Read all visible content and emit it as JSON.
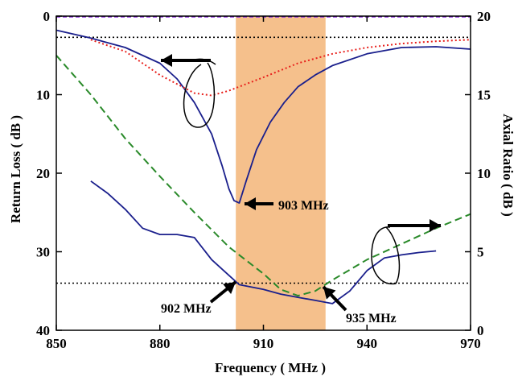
{
  "chart_data": {
    "type": "line",
    "xlabel": "Frequency ( MHz )",
    "ylabel_left": "Return Loss ( dB )",
    "ylabel_right": "Axial Ratio ( dB )",
    "xlim": [
      850,
      970
    ],
    "ylim_left": [
      0,
      40
    ],
    "ylim_left_inverted": true,
    "ylim_right": [
      0,
      20
    ],
    "x_ticks": [
      850,
      880,
      910,
      940,
      970
    ],
    "y_left_ticks": [
      0,
      10,
      20,
      30,
      40
    ],
    "y_right_ticks": [
      0,
      5,
      10,
      15,
      20
    ],
    "grid": false,
    "shaded_band": {
      "x": [
        902,
        928
      ],
      "color": "#f5c08c"
    },
    "reference_lines": [
      {
        "axis": "left",
        "y": 2.7,
        "color": "#000000",
        "style": "dotted"
      },
      {
        "axis": "right",
        "y": 3,
        "color": "#000000",
        "style": "dotted"
      }
    ],
    "series": [
      {
        "axis": "left",
        "color": "#1a1f8c",
        "style": "solid",
        "x": [
          850,
          860,
          870,
          880,
          885,
          890,
          895,
          898,
          900,
          901.5,
          903,
          905,
          908,
          912,
          916,
          920,
          925,
          930,
          940,
          950,
          960,
          970
        ],
        "y": [
          1.8,
          2.8,
          4.0,
          6.0,
          8.0,
          11.0,
          15.0,
          19.0,
          22.0,
          23.5,
          23.8,
          21.0,
          17.0,
          13.5,
          11.0,
          9.0,
          7.5,
          6.3,
          4.8,
          4.0,
          3.9,
          4.2
        ]
      },
      {
        "axis": "left",
        "color": "#e8201c",
        "style": "dotted",
        "x": [
          860,
          870,
          880,
          890,
          895,
          900,
          910,
          920,
          930,
          940,
          950,
          960,
          970
        ],
        "y": [
          3.0,
          4.5,
          7.5,
          9.8,
          10.1,
          9.5,
          7.8,
          6.0,
          4.8,
          4.0,
          3.5,
          3.2,
          3.0
        ]
      },
      {
        "axis": "right",
        "color": "#1a1f8c",
        "style": "solid",
        "x": [
          860,
          865,
          870,
          875,
          880,
          885,
          890,
          895,
          900,
          903,
          910,
          915,
          920,
          925,
          930,
          935,
          940,
          945,
          950,
          955,
          960
        ],
        "y": [
          9.5,
          8.7,
          7.7,
          6.5,
          6.1,
          6.1,
          5.9,
          4.5,
          3.5,
          2.9,
          2.6,
          2.3,
          2.1,
          1.9,
          1.7,
          2.5,
          3.8,
          4.6,
          4.8,
          4.95,
          5.05
        ]
      },
      {
        "axis": "right",
        "color": "#2a8a2a",
        "style": "dashed",
        "x": [
          850,
          860,
          870,
          880,
          890,
          900,
          910,
          915,
          920,
          925,
          930,
          940,
          950,
          960,
          970
        ],
        "y": [
          17.5,
          15.0,
          12.2,
          9.8,
          7.5,
          5.3,
          3.6,
          2.6,
          2.2,
          2.5,
          3.2,
          4.5,
          5.5,
          6.5,
          7.4
        ]
      }
    ],
    "annotations": [
      {
        "text": "903 MHz",
        "x": 903,
        "y_left": 23.8
      },
      {
        "text": "902 MHz",
        "x": 902,
        "y_right": 3.0
      },
      {
        "text": "935 MHz",
        "x": 935,
        "y_right": 3.0
      }
    ]
  }
}
